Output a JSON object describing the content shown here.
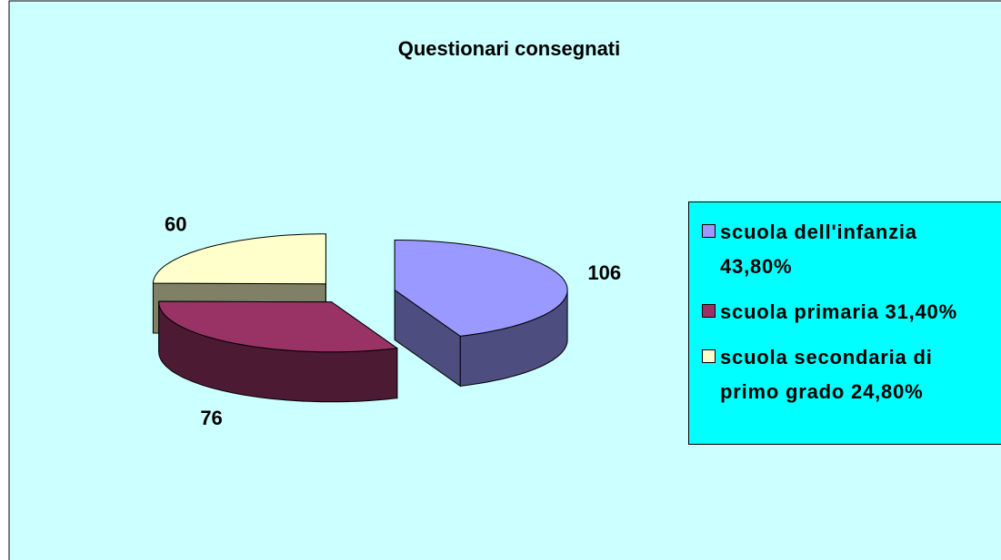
{
  "chart_data": {
    "type": "pie",
    "title": "Questionari consegnati",
    "categories": [
      "scuola dell'infanzia 43,80%",
      "scuola primaria 31,40%",
      "scuola secondaria di primo grado 24,80%"
    ],
    "values": [
      106,
      76,
      60
    ],
    "colors": [
      "#9999ff",
      "#993366",
      "#ffffcc"
    ],
    "side_colors": [
      "#4d4d80",
      "#4d1a33",
      "#808066"
    ],
    "legend": "right"
  }
}
